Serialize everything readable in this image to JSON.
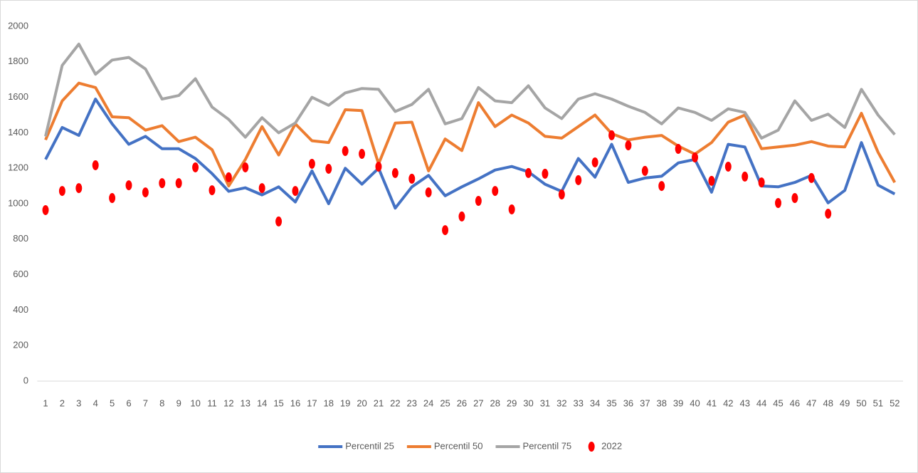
{
  "chart_data": {
    "type": "line",
    "categories": [
      "1",
      "2",
      "3",
      "4",
      "5",
      "6",
      "7",
      "8",
      "9",
      "10",
      "11",
      "12",
      "13",
      "14",
      "15",
      "16",
      "17",
      "18",
      "19",
      "20",
      "21",
      "22",
      "23",
      "24",
      "25",
      "26",
      "27",
      "28",
      "29",
      "30",
      "31",
      "32",
      "33",
      "34",
      "35",
      "36",
      "37",
      "38",
      "39",
      "40",
      "41",
      "42",
      "43",
      "44",
      "45",
      "46",
      "47",
      "48",
      "49",
      "50",
      "51",
      "52"
    ],
    "series": [
      {
        "name": "Percentil 25",
        "color": "#4472c4",
        "mode": "lines",
        "values": [
          1250,
          1430,
          1385,
          1590,
          1450,
          1335,
          1380,
          1310,
          1310,
          1255,
          1170,
          1070,
          1090,
          1050,
          1095,
          1010,
          1185,
          1000,
          1200,
          1110,
          1200,
          975,
          1095,
          1160,
          1045,
          1095,
          1140,
          1190,
          1210,
          1180,
          1110,
          1070,
          1255,
          1150,
          1335,
          1120,
          1145,
          1155,
          1230,
          1250,
          1065,
          1335,
          1320,
          1100,
          1095,
          1120,
          1160,
          1005,
          1075,
          1345,
          1105,
          1055
        ]
      },
      {
        "name": "Percentil 50",
        "color": "#ed7d31",
        "mode": "lines",
        "values": [
          1360,
          1580,
          1680,
          1655,
          1490,
          1485,
          1415,
          1440,
          1350,
          1375,
          1305,
          1100,
          1250,
          1435,
          1275,
          1450,
          1355,
          1345,
          1530,
          1525,
          1225,
          1455,
          1460,
          1185,
          1365,
          1300,
          1570,
          1435,
          1500,
          1455,
          1380,
          1370,
          1435,
          1500,
          1395,
          1360,
          1375,
          1385,
          1325,
          1280,
          1345,
          1460,
          1500,
          1310,
          1320,
          1330,
          1350,
          1325,
          1320,
          1510,
          1290,
          1120
        ]
      },
      {
        "name": "Percentil 75",
        "color": "#a5a5a5",
        "mode": "lines",
        "values": [
          1380,
          1780,
          1900,
          1730,
          1810,
          1825,
          1760,
          1590,
          1610,
          1705,
          1545,
          1475,
          1375,
          1485,
          1400,
          1455,
          1600,
          1555,
          1625,
          1650,
          1645,
          1520,
          1560,
          1645,
          1450,
          1480,
          1655,
          1580,
          1570,
          1665,
          1540,
          1480,
          1590,
          1620,
          1590,
          1550,
          1515,
          1450,
          1540,
          1515,
          1470,
          1535,
          1515,
          1370,
          1415,
          1580,
          1470,
          1505,
          1430,
          1645,
          1500,
          1390
        ]
      },
      {
        "name": "2022",
        "color": "#ff0000",
        "mode": "markers",
        "values": [
          964,
          1072,
          1088,
          1217,
          1032,
          1104,
          1064,
          1116,
          1116,
          1205,
          1076,
          1149,
          1205,
          1088,
          900,
          1072,
          1225,
          1197,
          1297,
          1281,
          1209,
          1173,
          1141,
          1064,
          851,
          928,
          1016,
          1072,
          968,
          1173,
          1169,
          1052,
          1133,
          1233,
          1386,
          1329,
          1185,
          1100,
          1309,
          1261,
          1129,
          1209,
          1153,
          1120,
          1004,
          1032,
          1145,
          944,
          null,
          null,
          null,
          null
        ]
      }
    ],
    "ylim": [
      0,
      2000
    ],
    "yticks": [
      0,
      200,
      400,
      600,
      800,
      1000,
      1200,
      1400,
      1600,
      1800,
      2000
    ],
    "grid": false,
    "legend": "bottom"
  }
}
